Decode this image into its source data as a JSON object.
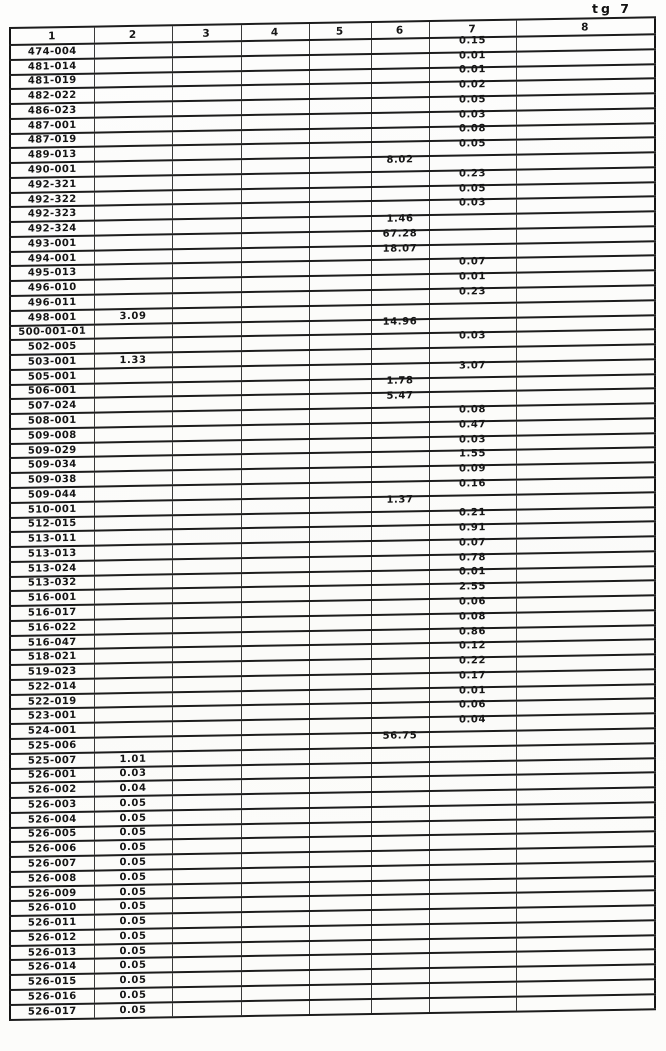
{
  "page": {
    "corner_label": "tg 7"
  },
  "table": {
    "column_headers": [
      "1",
      "2",
      "3",
      "4",
      "5",
      "6",
      "7",
      "8"
    ],
    "rows": [
      [
        "474-004",
        "",
        "",
        "",
        "",
        "",
        "0.15",
        ""
      ],
      [
        "481-014",
        "",
        "",
        "",
        "",
        "",
        "0.01",
        ""
      ],
      [
        "481-019",
        "",
        "",
        "",
        "",
        "",
        "0.01",
        ""
      ],
      [
        "482-022",
        "",
        "",
        "",
        "",
        "",
        "0.02",
        ""
      ],
      [
        "486-023",
        "",
        "",
        "",
        "",
        "",
        "0.05",
        ""
      ],
      [
        "487-001",
        "",
        "",
        "",
        "",
        "",
        "0.03",
        ""
      ],
      [
        "487-019",
        "",
        "",
        "",
        "",
        "",
        "0.08",
        ""
      ],
      [
        "489-013",
        "",
        "",
        "",
        "",
        "",
        "0.05",
        ""
      ],
      [
        "490-001",
        "",
        "",
        "",
        "",
        "8.02",
        "",
        ""
      ],
      [
        "492-321",
        "",
        "",
        "",
        "",
        "",
        "0.23",
        ""
      ],
      [
        "492-322",
        "",
        "",
        "",
        "",
        "",
        "0.05",
        ""
      ],
      [
        "492-323",
        "",
        "",
        "",
        "",
        "",
        "0.03",
        ""
      ],
      [
        "492-324",
        "",
        "",
        "",
        "",
        "1.46",
        "",
        ""
      ],
      [
        "493-001",
        "",
        "",
        "",
        "",
        "67.28",
        "",
        ""
      ],
      [
        "494-001",
        "",
        "",
        "",
        "",
        "18.07",
        "",
        ""
      ],
      [
        "495-013",
        "",
        "",
        "",
        "",
        "",
        "0.07",
        ""
      ],
      [
        "496-010",
        "",
        "",
        "",
        "",
        "",
        "0.01",
        ""
      ],
      [
        "496-011",
        "",
        "",
        "",
        "",
        "",
        "0.23",
        ""
      ],
      [
        "498-001",
        "3.09",
        "",
        "",
        "",
        "",
        "",
        ""
      ],
      [
        "500-001-01",
        "",
        "",
        "",
        "",
        "14.96",
        "",
        ""
      ],
      [
        "502-005",
        "",
        "",
        "",
        "",
        "",
        "0.03",
        ""
      ],
      [
        "503-001",
        "1.33",
        "",
        "",
        "",
        "",
        "",
        ""
      ],
      [
        "505-001",
        "",
        "",
        "",
        "",
        "",
        "3.07",
        ""
      ],
      [
        "506-001",
        "",
        "",
        "",
        "",
        "1.78",
        "",
        ""
      ],
      [
        "507-024",
        "",
        "",
        "",
        "",
        "5.47",
        "",
        ""
      ],
      [
        "508-001",
        "",
        "",
        "",
        "",
        "",
        "0.08",
        ""
      ],
      [
        "509-008",
        "",
        "",
        "",
        "",
        "",
        "0.47",
        ""
      ],
      [
        "509-029",
        "",
        "",
        "",
        "",
        "",
        "0.03",
        ""
      ],
      [
        "509-034",
        "",
        "",
        "",
        "",
        "",
        "1.55",
        ""
      ],
      [
        "509-038",
        "",
        "",
        "",
        "",
        "",
        "0.09",
        ""
      ],
      [
        "509-044",
        "",
        "",
        "",
        "",
        "",
        "0.16",
        ""
      ],
      [
        "510-001",
        "",
        "",
        "",
        "",
        "1.37",
        "",
        ""
      ],
      [
        "512-015",
        "",
        "",
        "",
        "",
        "",
        "0.21",
        ""
      ],
      [
        "513-011",
        "",
        "",
        "",
        "",
        "",
        "0.91",
        ""
      ],
      [
        "513-013",
        "",
        "",
        "",
        "",
        "",
        "0.07",
        ""
      ],
      [
        "513-024",
        "",
        "",
        "",
        "",
        "",
        "0.78",
        ""
      ],
      [
        "513-032",
        "",
        "",
        "",
        "",
        "",
        "0.01",
        ""
      ],
      [
        "516-001",
        "",
        "",
        "",
        "",
        "",
        "2.55",
        ""
      ],
      [
        "516-017",
        "",
        "",
        "",
        "",
        "",
        "0.06",
        ""
      ],
      [
        "516-022",
        "",
        "",
        "",
        "",
        "",
        "0.08",
        ""
      ],
      [
        "516-047",
        "",
        "",
        "",
        "",
        "",
        "0.86",
        ""
      ],
      [
        "518-021",
        "",
        "",
        "",
        "",
        "",
        "0.12",
        ""
      ],
      [
        "519-023",
        "",
        "",
        "",
        "",
        "",
        "0.22",
        ""
      ],
      [
        "522-014",
        "",
        "",
        "",
        "",
        "",
        "0.17",
        ""
      ],
      [
        "522-019",
        "",
        "",
        "",
        "",
        "",
        "0.01",
        ""
      ],
      [
        "523-001",
        "",
        "",
        "",
        "",
        "",
        "0.06",
        ""
      ],
      [
        "524-001",
        "",
        "",
        "",
        "",
        "",
        "0.04",
        ""
      ],
      [
        "525-006",
        "",
        "",
        "",
        "",
        "56.75",
        "",
        ""
      ],
      [
        "525-007",
        "1.01",
        "",
        "",
        "",
        "",
        "",
        ""
      ],
      [
        "526-001",
        "0.03",
        "",
        "",
        "",
        "",
        "",
        ""
      ],
      [
        "526-002",
        "0.04",
        "",
        "",
        "",
        "",
        "",
        ""
      ],
      [
        "526-003",
        "0.05",
        "",
        "",
        "",
        "",
        "",
        ""
      ],
      [
        "526-004",
        "0.05",
        "",
        "",
        "",
        "",
        "",
        ""
      ],
      [
        "526-005",
        "0.05",
        "",
        "",
        "",
        "",
        "",
        ""
      ],
      [
        "526-006",
        "0.05",
        "",
        "",
        "",
        "",
        "",
        ""
      ],
      [
        "526-007",
        "0.05",
        "",
        "",
        "",
        "",
        "",
        ""
      ],
      [
        "526-008",
        "0.05",
        "",
        "",
        "",
        "",
        "",
        ""
      ],
      [
        "526-009",
        "0.05",
        "",
        "",
        "",
        "",
        "",
        ""
      ],
      [
        "526-010",
        "0.05",
        "",
        "",
        "",
        "",
        "",
        ""
      ],
      [
        "526-011",
        "0.05",
        "",
        "",
        "",
        "",
        "",
        ""
      ],
      [
        "526-012",
        "0.05",
        "",
        "",
        "",
        "",
        "",
        ""
      ],
      [
        "526-013",
        "0.05",
        "",
        "",
        "",
        "",
        "",
        ""
      ],
      [
        "526-014",
        "0.05",
        "",
        "",
        "",
        "",
        "",
        ""
      ],
      [
        "526-015",
        "0.05",
        "",
        "",
        "",
        "",
        "",
        ""
      ],
      [
        "526-016",
        "0.05",
        "",
        "",
        "",
        "",
        "",
        ""
      ],
      [
        "526-017",
        "0.05",
        "",
        "",
        "",
        "",
        "",
        ""
      ]
    ]
  }
}
